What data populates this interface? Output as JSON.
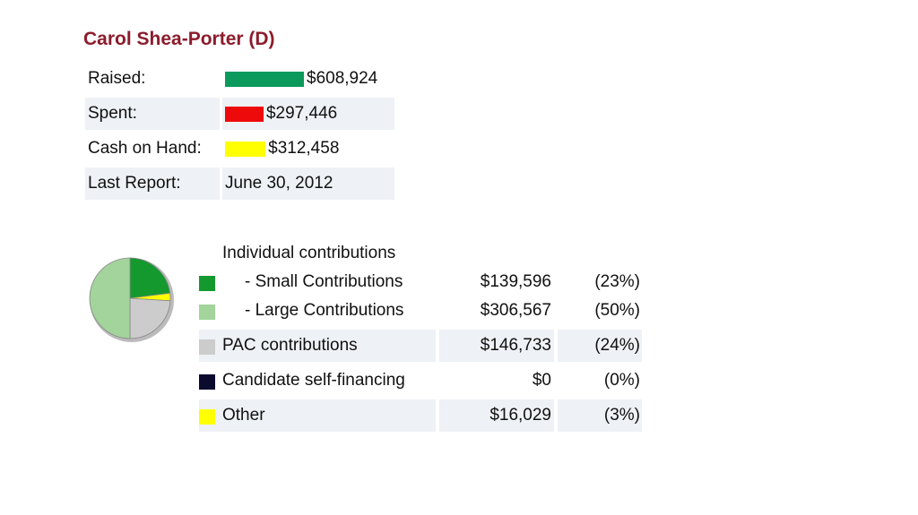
{
  "candidate": {
    "name": "Carol Shea-Porter (D)"
  },
  "summary": {
    "rows": [
      {
        "label": "Raised:",
        "amount": {
          "value": 608924,
          "label": "$608,924"
        },
        "color": "#0b9a5c"
      },
      {
        "label": "Spent:",
        "amount": {
          "value": 297446,
          "label": "$297,446"
        },
        "color": "#ee0a0a"
      },
      {
        "label": "Cash on Hand:",
        "amount": {
          "value": 312458,
          "label": "$312,458"
        },
        "color": "#ffff00"
      },
      {
        "label": "Last Report:",
        "date": "June 30, 2012"
      }
    ]
  },
  "contributions": {
    "heading": "Individual contributions",
    "rows": [
      {
        "label": "- Small Contributions",
        "amount": "$139,596",
        "percent": {
          "value": 23,
          "label": "(23%)"
        },
        "color": "#14992e"
      },
      {
        "label": "- Large Contributions",
        "amount": "$306,567",
        "percent": {
          "value": 50,
          "label": "(50%)"
        },
        "color": "#a2d49b"
      },
      {
        "label": "PAC contributions",
        "amount": "$146,733",
        "percent": {
          "value": 24,
          "label": "(24%)"
        },
        "color": "#cccccc"
      },
      {
        "label": "Candidate self-financing",
        "amount": "$0",
        "percent": {
          "value": 0,
          "label": "(0%)"
        },
        "color": "#0b0b2e"
      },
      {
        "label": "Other",
        "amount": "$16,029",
        "percent": {
          "value": 3,
          "label": "(3%)"
        },
        "color": "#ffff00"
      }
    ]
  }
}
